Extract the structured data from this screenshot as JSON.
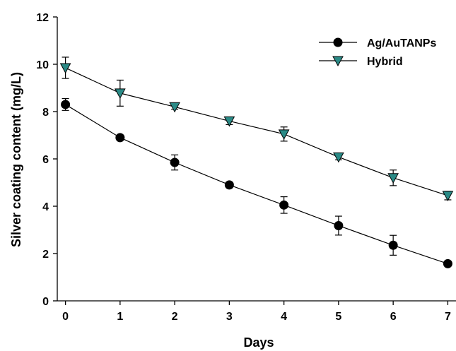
{
  "chart_data": {
    "type": "line",
    "title": "",
    "xlabel": "Days",
    "ylabel": "Silver coating content (mg/L)",
    "x": [
      0,
      1,
      2,
      3,
      4,
      5,
      6,
      7
    ],
    "xlim": [
      -0.15,
      7.15
    ],
    "ylim": [
      0,
      12
    ],
    "xticks": [
      "0",
      "1",
      "2",
      "3",
      "4",
      "5",
      "6",
      "7"
    ],
    "yticks": [
      "0",
      "2",
      "4",
      "6",
      "8",
      "10",
      "12"
    ],
    "grid": false,
    "legend_position": "top-right",
    "series": [
      {
        "name": "Ag/AuTANPs",
        "marker": "circle",
        "color": "#000000",
        "values": [
          8.3,
          6.9,
          5.85,
          4.9,
          4.05,
          3.18,
          2.35,
          1.57
        ],
        "errors": [
          0.25,
          0.1,
          0.32,
          0.12,
          0.35,
          0.4,
          0.42,
          0.08
        ]
      },
      {
        "name": "Hybrid",
        "marker": "triangle-down",
        "color": "#2a8a86",
        "values": [
          9.85,
          8.78,
          8.2,
          7.6,
          7.05,
          6.08,
          5.2,
          4.45
        ],
        "errors": [
          0.45,
          0.55,
          0.1,
          0.15,
          0.3,
          0.12,
          0.33,
          0.18
        ]
      }
    ]
  }
}
